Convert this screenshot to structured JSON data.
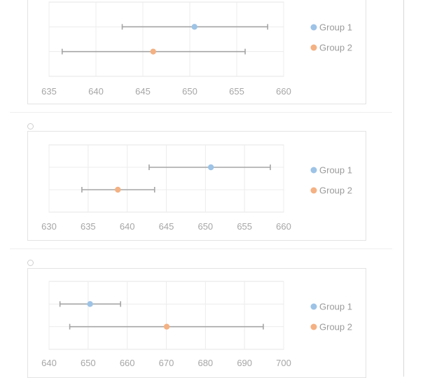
{
  "chart_data": [
    {
      "type": "scatter",
      "xlim": [
        635,
        660
      ],
      "xticks": [
        635,
        640,
        645,
        650,
        655,
        660
      ],
      "grid": true,
      "legend_position": "right",
      "series": [
        {
          "name": "Group 1",
          "x": 650.5,
          "low": 642.8,
          "high": 658.3,
          "color": "#9dc3e6"
        },
        {
          "name": "Group 2",
          "x": 646.1,
          "low": 636.4,
          "high": 655.9,
          "color": "#f4b183"
        }
      ]
    },
    {
      "type": "scatter",
      "xlim": [
        630,
        660
      ],
      "xticks": [
        630,
        635,
        640,
        645,
        650,
        655,
        660
      ],
      "grid": true,
      "legend_position": "right",
      "series": [
        {
          "name": "Group 1",
          "x": 650.7,
          "low": 642.8,
          "high": 658.3,
          "color": "#9dc3e6"
        },
        {
          "name": "Group 2",
          "x": 638.8,
          "low": 634.2,
          "high": 643.5,
          "color": "#f4b183"
        }
      ]
    },
    {
      "type": "scatter",
      "xlim": [
        640,
        700
      ],
      "xticks": [
        640,
        650,
        660,
        670,
        680,
        690,
        700
      ],
      "grid": true,
      "legend_position": "right",
      "series": [
        {
          "name": "Group 1",
          "x": 650.5,
          "low": 642.8,
          "high": 658.3,
          "color": "#9dc3e6"
        },
        {
          "name": "Group 2",
          "x": 670.1,
          "low": 645.3,
          "high": 694.8,
          "color": "#f4b183"
        }
      ]
    }
  ]
}
